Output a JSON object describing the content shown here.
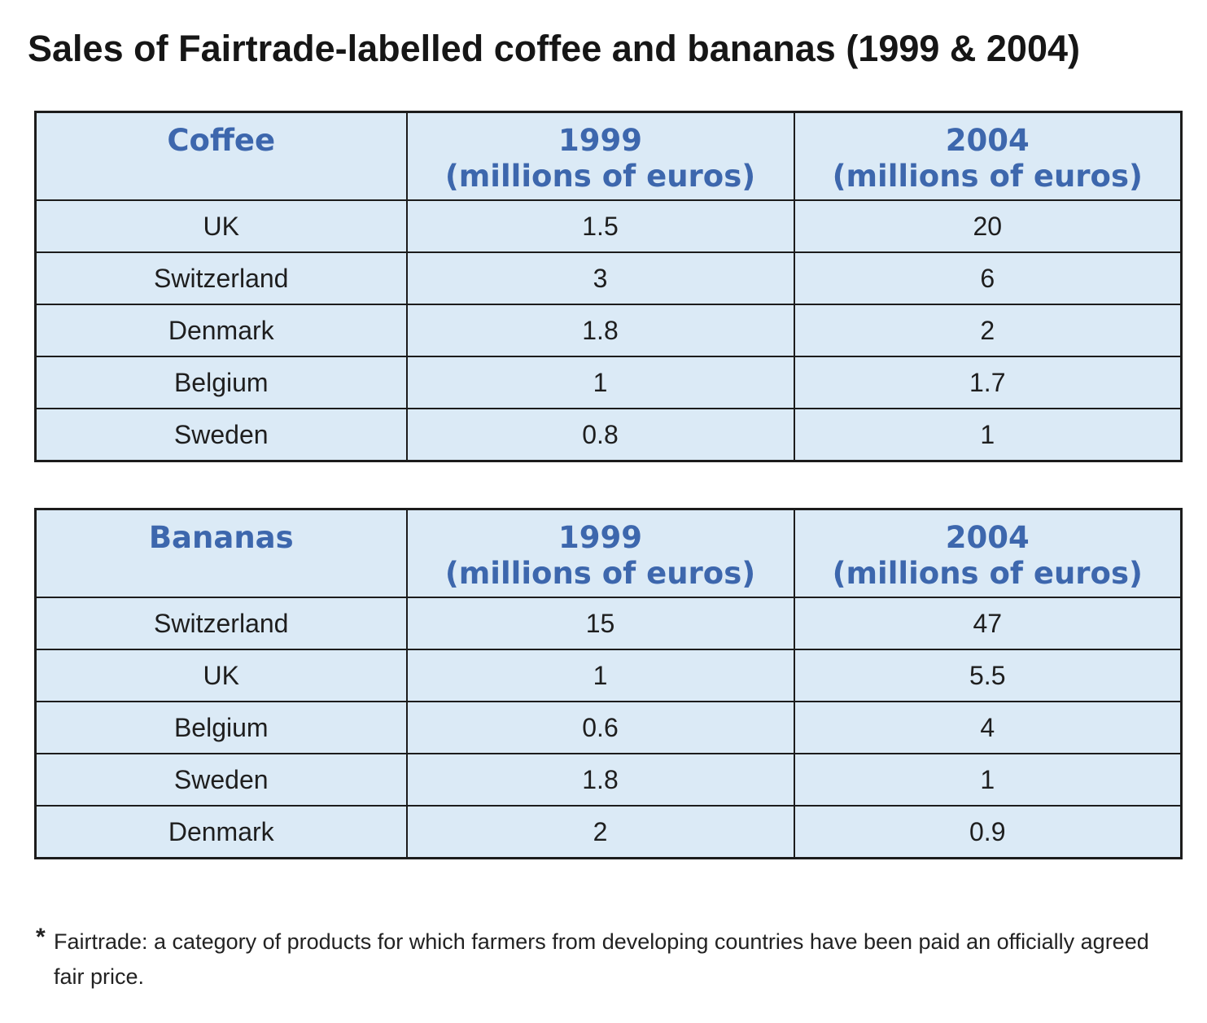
{
  "title": "Sales of Fairtrade-labelled coffee and bananas (1999 & 2004)",
  "chart_data": [
    {
      "type": "table",
      "columns": [
        "Coffee",
        "1999 (millions of euros)",
        "2004 (millions of euros)"
      ],
      "header": {
        "category": "Coffee",
        "col1_year": "1999",
        "col1_unit": "(millions of euros)",
        "col2_year": "2004",
        "col2_unit": "(millions of euros)"
      },
      "rows": [
        [
          "UK",
          "1.5",
          "20"
        ],
        [
          "Switzerland",
          "3",
          "6"
        ],
        [
          "Denmark",
          "1.8",
          "2"
        ],
        [
          "Belgium",
          "1",
          "1.7"
        ],
        [
          "Sweden",
          "0.8",
          "1"
        ]
      ]
    },
    {
      "type": "table",
      "columns": [
        "Bananas",
        "1999 (millions of euros)",
        "2004 (millions of euros)"
      ],
      "header": {
        "category": "Bananas",
        "col1_year": "1999",
        "col1_unit": "(millions of euros)",
        "col2_year": "2004",
        "col2_unit": "(millions of euros)"
      },
      "rows": [
        [
          "Switzerland",
          "15",
          "47"
        ],
        [
          "UK",
          "1",
          "5.5"
        ],
        [
          "Belgium",
          "0.6",
          "4"
        ],
        [
          "Sweden",
          "1.8",
          "1"
        ],
        [
          "Denmark",
          "2",
          "0.9"
        ]
      ]
    }
  ],
  "footnote": {
    "marker": "*",
    "text": "Fairtrade: a category of products for which farmers from developing countries have been paid an officially agreed fair price."
  },
  "colors": {
    "header_text": "#3d67ad",
    "cell_background": "#dbeaf6",
    "border": "#1c1c1c"
  }
}
